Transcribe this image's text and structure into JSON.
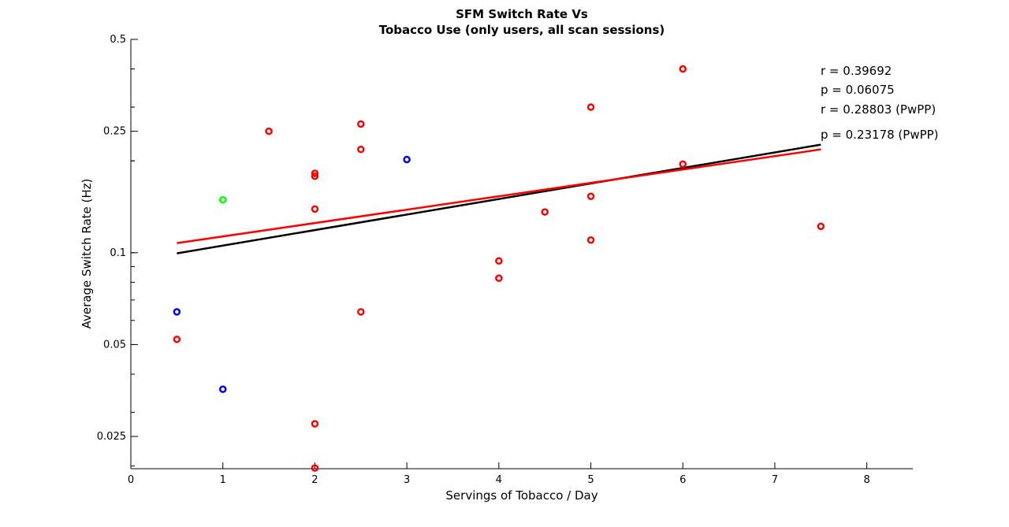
{
  "chart_data": {
    "type": "scatter",
    "title": [
      "SFM Switch Rate Vs",
      "Tobacco Use (only users, all scan sessions)"
    ],
    "xlabel": "Servings of Tobacco / Day",
    "ylabel": "Average Switch Rate (Hz)",
    "xlim": [
      0,
      8.5
    ],
    "ylim": [
      0.0196,
      0.5
    ],
    "yscale": "log",
    "xticks": [
      0,
      1,
      2,
      3,
      4,
      5,
      6,
      7,
      8
    ],
    "xtick_labels": [
      "0",
      "1",
      "2",
      "3",
      "4",
      "5",
      "6",
      "7",
      "8"
    ],
    "yticks": [
      0.025,
      0.05,
      0.1,
      0.25,
      0.5
    ],
    "ytick_labels": [
      "0.025",
      "0.05",
      "0.1",
      "0.25",
      "0.5"
    ],
    "grid": false,
    "series": [
      {
        "color": "#ff0000",
        "marker": "circle",
        "points": [
          [
            0.5,
            0.052
          ],
          [
            1.5,
            0.25
          ],
          [
            2,
            0.182
          ],
          [
            2,
            0.178
          ],
          [
            2,
            0.139
          ],
          [
            2,
            0.0275
          ],
          [
            2,
            0.0197
          ],
          [
            2.5,
            0.264
          ],
          [
            2.5,
            0.218
          ],
          [
            2.5,
            0.064
          ],
          [
            4,
            0.094
          ],
          [
            4,
            0.0825
          ],
          [
            4.5,
            0.136
          ],
          [
            5,
            0.3
          ],
          [
            5,
            0.153
          ],
          [
            5,
            0.11
          ],
          [
            6,
            0.4
          ],
          [
            6,
            0.195
          ],
          [
            7.5,
            0.122
          ]
        ]
      },
      {
        "color": "#0000ff",
        "marker": "circle",
        "points": [
          [
            0.5,
            0.064
          ],
          [
            1,
            0.0357
          ],
          [
            3,
            0.202
          ]
        ]
      },
      {
        "color": "#00ff00",
        "marker": "circle",
        "points": [
          [
            1,
            0.149
          ]
        ]
      }
    ],
    "fit_lines": [
      {
        "color": "#000000",
        "x": [
          0.5,
          7.5
        ],
        "y": [
          0.0995,
          0.226
        ]
      },
      {
        "color": "#ff0000",
        "x": [
          0.5,
          7.5
        ],
        "y": [
          0.1075,
          0.218
        ]
      }
    ],
    "annotations": [
      "r = 0.39692",
      "p = 0.06075",
      "r = 0.28803 (PwPP)",
      "p = 0.23178 (PwPP)"
    ]
  }
}
